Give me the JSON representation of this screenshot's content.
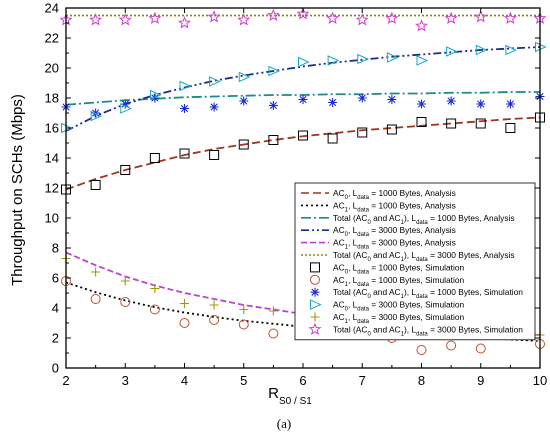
{
  "chart_data": {
    "type": "line",
    "xlabel_main": "R",
    "xlabel_sub": "S0 / S1",
    "ylabel": "Throughput on SCHs (Mbps)",
    "caption": "(a)",
    "xlim": [
      2,
      10
    ],
    "ylim": [
      0,
      24
    ],
    "xticks": [
      2,
      3,
      4,
      5,
      6,
      7,
      8,
      9,
      10
    ],
    "yticks": [
      0,
      2,
      4,
      6,
      8,
      10,
      12,
      14,
      16,
      18,
      20,
      22,
      24
    ],
    "analysis_x": [
      2,
      2.5,
      3,
      3.5,
      4,
      4.5,
      5,
      5.5,
      6,
      6.5,
      7,
      7.5,
      8,
      8.5,
      9,
      9.5,
      10
    ],
    "simulation_x": [
      2,
      2.5,
      3,
      3.5,
      4,
      4.5,
      5,
      5.5,
      6,
      6.5,
      7,
      7.5,
      8,
      8.5,
      9,
      9.5,
      10
    ],
    "series": [
      {
        "legend": [
          [
            "AC",
            ""
          ],
          [
            "0",
            "sub"
          ],
          [
            ", L",
            ""
          ],
          [
            "data",
            "sub"
          ],
          [
            " = 1000 Bytes, Analysis",
            ""
          ]
        ],
        "kind": "line",
        "color": "#a0341c",
        "dash": "8 4",
        "values": [
          11.9,
          12.6,
          13.2,
          13.7,
          14.2,
          14.6,
          14.9,
          15.2,
          15.45,
          15.65,
          15.85,
          16.0,
          16.15,
          16.3,
          16.45,
          16.6,
          16.7
        ]
      },
      {
        "legend": [
          [
            "AC",
            ""
          ],
          [
            "1",
            "sub"
          ],
          [
            ", L",
            ""
          ],
          [
            "data",
            "sub"
          ],
          [
            " = 1000 Bytes, Analysis",
            ""
          ]
        ],
        "kind": "line",
        "color": "#000000",
        "dash": "2 3",
        "values": [
          5.7,
          5.05,
          4.5,
          4.05,
          3.7,
          3.4,
          3.15,
          2.95,
          2.75,
          2.6,
          2.45,
          2.3,
          2.2,
          2.1,
          2.0,
          1.9,
          1.8
        ]
      },
      {
        "legend": [
          [
            "Total (AC",
            ""
          ],
          [
            "0",
            "sub"
          ],
          [
            " and AC",
            ""
          ],
          [
            "1",
            "sub"
          ],
          [
            "), L",
            ""
          ],
          [
            "data",
            "sub"
          ],
          [
            " = 1000 Bytes,  Analysis",
            ""
          ]
        ],
        "kind": "line",
        "color": "#1a8a8a",
        "dash": "10 3 2 3",
        "values": [
          17.55,
          17.7,
          17.85,
          17.95,
          18.05,
          18.1,
          18.15,
          18.2,
          18.2,
          18.25,
          18.25,
          18.3,
          18.3,
          18.35,
          18.35,
          18.4,
          18.4
        ]
      },
      {
        "legend": [
          [
            "AC",
            ""
          ],
          [
            "0",
            "sub"
          ],
          [
            ", L",
            ""
          ],
          [
            "data",
            "sub"
          ],
          [
            " = 3000 Bytes, Analysis",
            ""
          ]
        ],
        "kind": "line",
        "color": "#1a2b8c",
        "dash": "8 3 2 3 2 3",
        "values": [
          15.8,
          16.8,
          17.6,
          18.2,
          18.7,
          19.15,
          19.5,
          19.8,
          20.1,
          20.35,
          20.55,
          20.75,
          20.9,
          21.05,
          21.2,
          21.3,
          21.4
        ]
      },
      {
        "legend": [
          [
            "AC",
            ""
          ],
          [
            "1",
            "sub"
          ],
          [
            ", L",
            ""
          ],
          [
            "data",
            "sub"
          ],
          [
            " = 3000 Bytes, Analysis",
            ""
          ]
        ],
        "kind": "line",
        "color": "#c040d0",
        "dash": "6 3",
        "values": [
          7.7,
          6.85,
          6.1,
          5.5,
          5.0,
          4.6,
          4.2,
          3.9,
          3.6,
          3.35,
          3.15,
          2.95,
          2.75,
          2.6,
          2.45,
          2.3,
          2.2
        ]
      },
      {
        "legend": [
          [
            "Total (AC",
            ""
          ],
          [
            "0",
            "sub"
          ],
          [
            " and AC",
            ""
          ],
          [
            "1",
            "sub"
          ],
          [
            "), L",
            ""
          ],
          [
            "data",
            "sub"
          ],
          [
            " = 3000 Bytes, Analysis",
            ""
          ]
        ],
        "kind": "line",
        "color": "#8a8a10",
        "dash": "2 2",
        "values": [
          23.5,
          23.5,
          23.5,
          23.5,
          23.5,
          23.5,
          23.5,
          23.5,
          23.5,
          23.5,
          23.5,
          23.5,
          23.5,
          23.5,
          23.5,
          23.5,
          23.5
        ]
      },
      {
        "legend": [
          [
            "AC",
            ""
          ],
          [
            "0",
            "sub"
          ],
          [
            ", L",
            ""
          ],
          [
            "data",
            "sub"
          ],
          [
            " = 1000 Bytes, Simulation",
            ""
          ]
        ],
        "kind": "marker",
        "marker": "square",
        "color": "#000000",
        "values": [
          11.9,
          12.2,
          13.2,
          14.0,
          14.3,
          14.2,
          14.9,
          15.2,
          15.5,
          15.3,
          15.7,
          15.9,
          16.4,
          16.3,
          16.3,
          16.0,
          16.7
        ]
      },
      {
        "legend": [
          [
            "AC",
            ""
          ],
          [
            "1",
            "sub"
          ],
          [
            ", L",
            ""
          ],
          [
            "data",
            "sub"
          ],
          [
            " = 1000 Bytes, Simulation",
            ""
          ]
        ],
        "kind": "marker",
        "marker": "circle",
        "color": "#c0502a",
        "values": [
          5.8,
          4.6,
          4.4,
          3.9,
          3.0,
          3.2,
          2.9,
          2.3,
          2.5,
          2.3,
          2.2,
          2.0,
          1.2,
          1.5,
          1.3,
          2.2,
          1.6
        ]
      },
      {
        "legend": [
          [
            "Total (AC",
            ""
          ],
          [
            "0",
            "sub"
          ],
          [
            " and AC",
            ""
          ],
          [
            "1",
            "sub"
          ],
          [
            "), L",
            ""
          ],
          [
            "data",
            "sub"
          ],
          [
            " = 1000 Bytes, Simulation",
            ""
          ]
        ],
        "kind": "marker",
        "marker": "asterisk",
        "color": "#1a2bd0",
        "values": [
          17.4,
          17.0,
          17.6,
          18.0,
          17.3,
          17.4,
          17.8,
          17.5,
          17.9,
          17.7,
          18.0,
          17.9,
          17.6,
          17.8,
          17.6,
          17.6,
          18.1
        ]
      },
      {
        "legend": [
          [
            "AC",
            ""
          ],
          [
            "0",
            "sub"
          ],
          [
            ", L",
            ""
          ],
          [
            "data",
            "sub"
          ],
          [
            " = 3000 Bytes, Simulation",
            ""
          ]
        ],
        "kind": "marker",
        "marker": "triangle",
        "color": "#1aa8c8",
        "values": [
          16.0,
          16.8,
          17.3,
          18.2,
          18.8,
          19.1,
          19.4,
          19.8,
          20.4,
          20.5,
          20.6,
          20.7,
          20.5,
          21.1,
          21.2,
          21.2,
          21.4
        ]
      },
      {
        "legend": [
          [
            "AC",
            ""
          ],
          [
            "1",
            "sub"
          ],
          [
            ", L",
            ""
          ],
          [
            "data",
            "sub"
          ],
          [
            " = 3000 Bytes, Simulation",
            ""
          ]
        ],
        "kind": "marker",
        "marker": "plus",
        "color": "#9a9a10",
        "values": [
          7.3,
          6.4,
          5.8,
          5.3,
          4.3,
          4.2,
          3.9,
          3.8,
          3.4,
          3.2,
          3.0,
          2.8,
          2.6,
          2.4,
          2.4,
          2.2,
          2.2
        ]
      },
      {
        "legend": [
          [
            "Total (AC",
            ""
          ],
          [
            "0",
            "sub"
          ],
          [
            " and AC",
            ""
          ],
          [
            "1",
            "sub"
          ],
          [
            "), L",
            ""
          ],
          [
            "data",
            "sub"
          ],
          [
            " = 3000 Bytes, Simulation",
            ""
          ]
        ],
        "kind": "marker",
        "marker": "star",
        "color": "#d040d0",
        "values": [
          23.2,
          23.2,
          23.2,
          23.3,
          23.0,
          23.4,
          23.2,
          23.5,
          23.6,
          23.3,
          23.2,
          23.3,
          22.8,
          23.3,
          23.4,
          23.3,
          23.3
        ]
      }
    ]
  }
}
